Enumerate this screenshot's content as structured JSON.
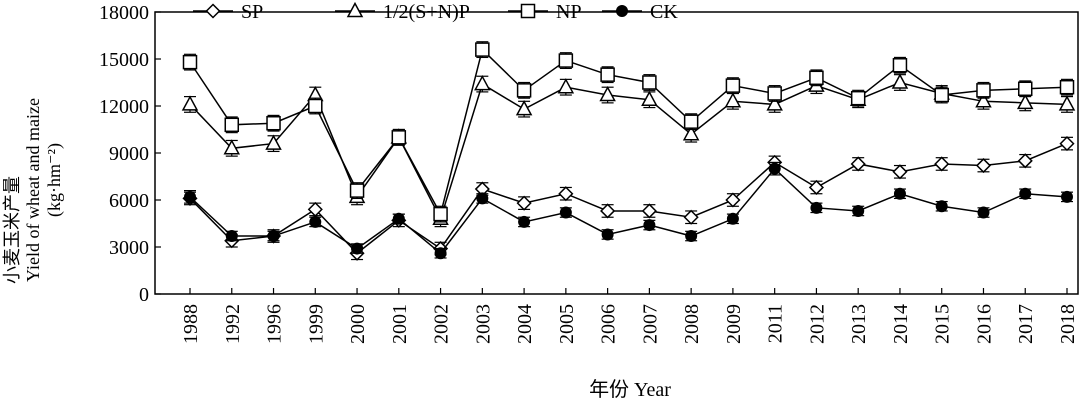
{
  "chart_data": {
    "type": "line",
    "title": "",
    "xlabel": "年份 Year",
    "ylabel_lines": [
      "小麦玉米产量",
      "Yield of wheat and maize",
      "(kg·hm⁻²)"
    ],
    "ylim": [
      0,
      18000
    ],
    "yticks": [
      0,
      3000,
      6000,
      9000,
      12000,
      15000,
      18000
    ],
    "grid": false,
    "legend_position": "top",
    "categories": [
      "1988",
      "1992",
      "1996",
      "1999",
      "2000",
      "2001",
      "2002",
      "2003",
      "2004",
      "2005",
      "2006",
      "2007",
      "2008",
      "2009",
      "2011",
      "2012",
      "2013",
      "2014",
      "2015",
      "2016",
      "2017",
      "2018"
    ],
    "series": [
      {
        "name": "SP",
        "marker": "diamond-open",
        "values": [
          6100,
          3400,
          3700,
          5400,
          2600,
          4700,
          2900,
          6700,
          5800,
          6400,
          5300,
          5300,
          4900,
          6000,
          8400,
          6800,
          8300,
          7800,
          8300,
          8200,
          8500,
          9600
        ],
        "errors": [
          400,
          400,
          400,
          400,
          400,
          400,
          400,
          400,
          400,
          400,
          400,
          400,
          400,
          400,
          400,
          400,
          400,
          400,
          400,
          400,
          400,
          400
        ]
      },
      {
        "name": "1/2(S+N)P",
        "marker": "triangle-open",
        "values": [
          12100,
          9300,
          9600,
          12700,
          6200,
          10000,
          4800,
          13400,
          11800,
          13200,
          12700,
          12400,
          10200,
          12300,
          12100,
          13300,
          12400,
          13500,
          12800,
          12300,
          12200,
          12100
        ],
        "errors": [
          500,
          500,
          500,
          500,
          500,
          500,
          500,
          500,
          500,
          500,
          500,
          500,
          500,
          500,
          500,
          500,
          500,
          500,
          500,
          500,
          500,
          500
        ]
      },
      {
        "name": "NP",
        "marker": "square-open",
        "values": [
          14800,
          10800,
          10900,
          12000,
          6600,
          10000,
          5100,
          15600,
          13000,
          14900,
          14000,
          13500,
          11000,
          13300,
          12800,
          13800,
          12500,
          14600,
          12700,
          13000,
          13100,
          13200
        ],
        "errors": [
          500,
          500,
          500,
          500,
          500,
          500,
          500,
          500,
          500,
          500,
          500,
          500,
          500,
          500,
          500,
          500,
          500,
          500,
          500,
          500,
          500,
          500
        ]
      },
      {
        "name": "CK",
        "marker": "circle-filled",
        "values": [
          6200,
          3700,
          3700,
          4600,
          2900,
          4800,
          2600,
          6100,
          4600,
          5200,
          3800,
          4400,
          3700,
          4800,
          8000,
          5500,
          5300,
          6400,
          5600,
          5200,
          6400,
          6200
        ],
        "errors": [
          400,
          300,
          300,
          300,
          300,
          300,
          300,
          300,
          300,
          300,
          300,
          300,
          300,
          300,
          400,
          300,
          300,
          300,
          300,
          300,
          300,
          300
        ]
      }
    ]
  }
}
